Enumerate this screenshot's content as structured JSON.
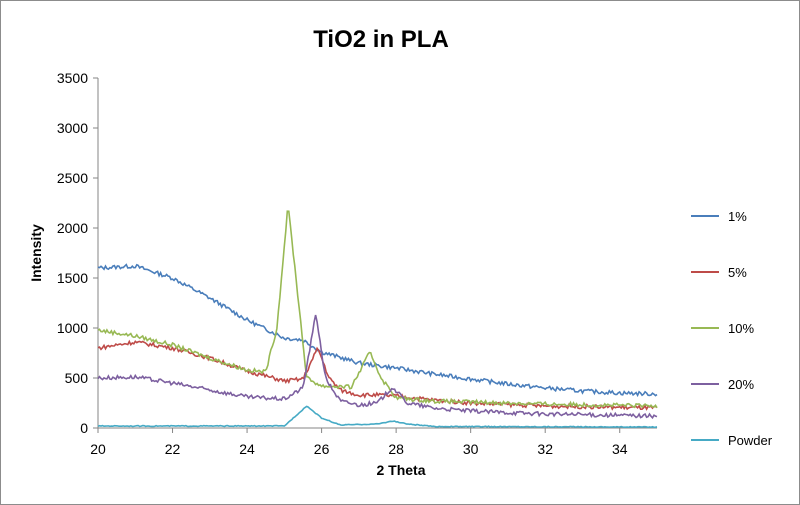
{
  "chart_data": {
    "type": "line",
    "title": "TiO2 in PLA",
    "xlabel": "2 Theta",
    "ylabel": "Intensity",
    "xlim": [
      20,
      35
    ],
    "ylim": [
      0,
      3500
    ],
    "xticks": [
      20,
      22,
      24,
      26,
      28,
      30,
      32,
      34
    ],
    "yticks": [
      0,
      500,
      1000,
      1500,
      2000,
      2500,
      3000,
      3500
    ],
    "grid": false,
    "legend": "right",
    "series": [
      {
        "name": "1%",
        "color": "#4a7ebb",
        "points": [
          [
            20,
            1600
          ],
          [
            21,
            1620
          ],
          [
            22,
            1500
          ],
          [
            23,
            1300
          ],
          [
            24,
            1080
          ],
          [
            25,
            900
          ],
          [
            25.5,
            880
          ],
          [
            26,
            760
          ],
          [
            27,
            650
          ],
          [
            28,
            600
          ],
          [
            29,
            540
          ],
          [
            30,
            490
          ],
          [
            31,
            440
          ],
          [
            32,
            400
          ],
          [
            33,
            370
          ],
          [
            34,
            350
          ],
          [
            35,
            340
          ]
        ]
      },
      {
        "name": "5%",
        "color": "#be4b48",
        "points": [
          [
            20,
            800
          ],
          [
            21,
            860
          ],
          [
            22,
            800
          ],
          [
            23,
            700
          ],
          [
            24,
            570
          ],
          [
            25,
            470
          ],
          [
            25.5,
            490
          ],
          [
            25.9,
            800
          ],
          [
            26.2,
            500
          ],
          [
            26.5,
            380
          ],
          [
            27,
            330
          ],
          [
            27.5,
            330
          ],
          [
            28,
            320
          ],
          [
            29,
            280
          ],
          [
            30,
            250
          ],
          [
            32,
            220
          ],
          [
            35,
            200
          ]
        ]
      },
      {
        "name": "10%",
        "color": "#98b954",
        "points": [
          [
            20,
            980
          ],
          [
            21,
            920
          ],
          [
            22,
            830
          ],
          [
            23,
            700
          ],
          [
            24,
            580
          ],
          [
            24.5,
            560
          ],
          [
            24.8,
            1000
          ],
          [
            25.1,
            2230
          ],
          [
            25.4,
            1200
          ],
          [
            25.6,
            500
          ],
          [
            26,
            420
          ],
          [
            26.8,
            410
          ],
          [
            27.3,
            760
          ],
          [
            27.6,
            500
          ],
          [
            28,
            300
          ],
          [
            29,
            270
          ],
          [
            30,
            260
          ],
          [
            32,
            240
          ],
          [
            35,
            220
          ]
        ]
      },
      {
        "name": "20%",
        "color": "#7d60a0",
        "points": [
          [
            20,
            500
          ],
          [
            21,
            510
          ],
          [
            22,
            450
          ],
          [
            23,
            380
          ],
          [
            24,
            310
          ],
          [
            25,
            290
          ],
          [
            25.5,
            400
          ],
          [
            25.85,
            1150
          ],
          [
            26.1,
            500
          ],
          [
            26.5,
            270
          ],
          [
            27,
            230
          ],
          [
            27.5,
            250
          ],
          [
            27.9,
            410
          ],
          [
            28.3,
            250
          ],
          [
            29,
            200
          ],
          [
            30,
            170
          ],
          [
            32,
            140
          ],
          [
            35,
            120
          ]
        ]
      },
      {
        "name": "Powder",
        "color": "#46aac5",
        "points": [
          [
            20,
            20
          ],
          [
            25,
            20
          ],
          [
            25.3,
            120
          ],
          [
            25.6,
            220
          ],
          [
            26,
            100
          ],
          [
            26.5,
            30
          ],
          [
            27.5,
            40
          ],
          [
            27.9,
            70
          ],
          [
            28.3,
            40
          ],
          [
            29,
            15
          ],
          [
            35,
            10
          ]
        ]
      }
    ]
  }
}
